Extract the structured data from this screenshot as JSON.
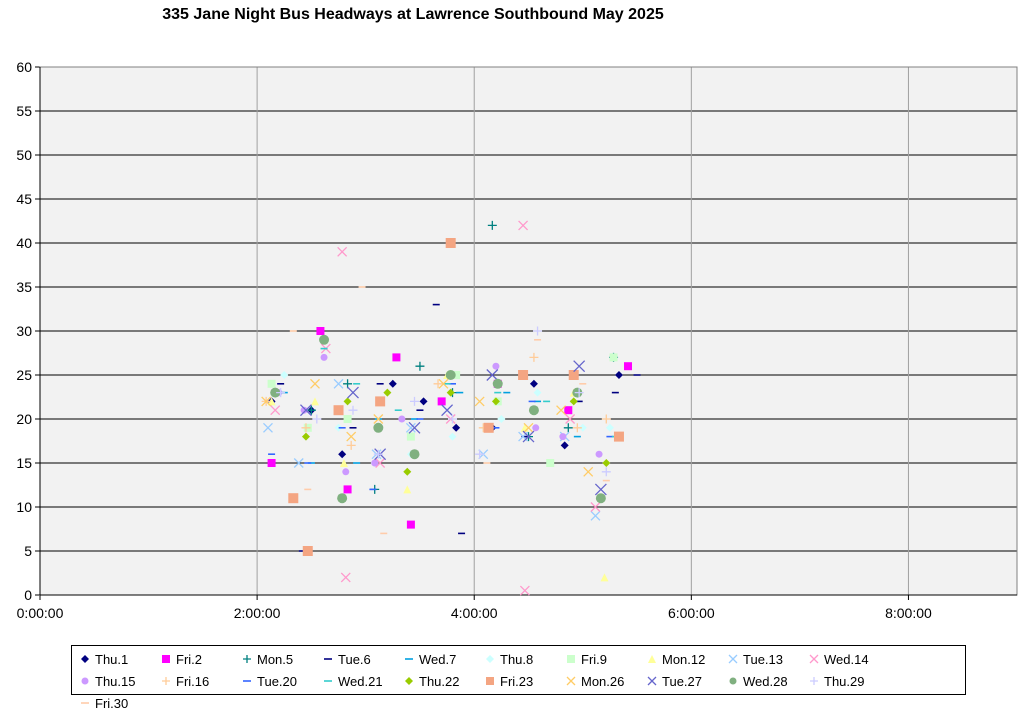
{
  "chart_data": {
    "type": "scatter",
    "title": "335 Jane Night Bus Headways at Lawrence Southbound May 2025",
    "xlim": [
      "0:00:00",
      "9:00:00"
    ],
    "ylim": [
      0,
      60
    ],
    "x_ticks": [
      "0:00:00",
      "2:00:00",
      "4:00:00",
      "6:00:00",
      "8:00:00"
    ],
    "y_ticks": [
      0,
      5,
      10,
      15,
      20,
      25,
      30,
      35,
      40,
      45,
      50,
      55,
      60
    ],
    "grid": true,
    "legend_position": "bottom",
    "series": [
      {
        "name": "Thu.1",
        "marker": "diamond",
        "color": "#000080",
        "points": [
          [
            "2:08",
            22
          ],
          [
            "2:30",
            21
          ],
          [
            "2:47",
            16
          ],
          [
            "3:15",
            24
          ],
          [
            "3:32",
            22
          ],
          [
            "3:50",
            19
          ],
          [
            "4:10",
            19
          ],
          [
            "4:33",
            24
          ],
          [
            "4:50",
            17
          ],
          [
            "5:20",
            25
          ]
        ]
      },
      {
        "name": "Fri.2",
        "marker": "square",
        "color": "#ff00ff",
        "points": [
          [
            "2:08",
            15
          ],
          [
            "2:35",
            30
          ],
          [
            "2:50",
            12
          ],
          [
            "3:17",
            27
          ],
          [
            "3:25",
            8
          ],
          [
            "3:42",
            22
          ],
          [
            "4:13",
            24
          ],
          [
            "4:52",
            21
          ],
          [
            "5:25",
            26
          ]
        ]
      },
      {
        "name": "Mon.5",
        "marker": "plus",
        "color": "#008080",
        "points": [
          [
            "2:30",
            21
          ],
          [
            "2:50",
            24
          ],
          [
            "3:05",
            12
          ],
          [
            "3:30",
            26
          ],
          [
            "3:48",
            23
          ],
          [
            "4:10",
            42
          ],
          [
            "4:30",
            18
          ],
          [
            "4:52",
            19
          ],
          [
            "5:17",
            27
          ]
        ]
      },
      {
        "name": "Tue.6",
        "marker": "dash",
        "color": "#000080",
        "points": [
          [
            "2:13",
            24
          ],
          [
            "2:25",
            5
          ],
          [
            "2:53",
            19
          ],
          [
            "3:08",
            24
          ],
          [
            "3:30",
            21
          ],
          [
            "3:39",
            33
          ],
          [
            "3:53",
            7
          ],
          [
            "4:13",
            24
          ],
          [
            "4:28",
            18
          ],
          [
            "4:58",
            22
          ],
          [
            "5:18",
            23
          ],
          [
            "5:30",
            25
          ]
        ]
      },
      {
        "name": "Wed.7",
        "marker": "dash",
        "color": "#00a0e0",
        "points": [
          [
            "2:15",
            23
          ],
          [
            "2:30",
            15
          ],
          [
            "2:55",
            15
          ],
          [
            "3:07",
            20
          ],
          [
            "3:27",
            20
          ],
          [
            "3:52",
            23
          ],
          [
            "4:18",
            23
          ],
          [
            "4:35",
            22
          ],
          [
            "4:57",
            18
          ]
        ]
      },
      {
        "name": "Thu.8",
        "marker": "diamond",
        "color": "#ccffff",
        "points": [
          [
            "2:15",
            25
          ],
          [
            "2:45",
            19
          ],
          [
            "3:05",
            15
          ],
          [
            "3:25",
            16
          ],
          [
            "3:48",
            18
          ],
          [
            "4:15",
            20
          ],
          [
            "4:35",
            23
          ],
          [
            "5:00",
            19
          ],
          [
            "5:15",
            19
          ]
        ]
      },
      {
        "name": "Fri.9",
        "marker": "square",
        "color": "#ccffcc",
        "points": [
          [
            "2:08",
            24
          ],
          [
            "2:28",
            19
          ],
          [
            "2:50",
            20
          ],
          [
            "3:25",
            18
          ],
          [
            "3:50",
            25
          ],
          [
            "4:13",
            22
          ],
          [
            "4:42",
            15
          ],
          [
            "5:17",
            27
          ]
        ]
      },
      {
        "name": "Mon.12",
        "marker": "triangle",
        "color": "#ffff99",
        "points": [
          [
            "2:08",
            22
          ],
          [
            "2:32",
            22
          ],
          [
            "2:48",
            15
          ],
          [
            "3:23",
            12
          ],
          [
            "3:45",
            25
          ],
          [
            "4:28",
            19
          ],
          [
            "4:55",
            23
          ],
          [
            "5:12",
            2
          ]
        ]
      },
      {
        "name": "Tue.13",
        "marker": "x",
        "color": "#99ccff",
        "points": [
          [
            "2:06",
            19
          ],
          [
            "2:23",
            15
          ],
          [
            "2:45",
            24
          ],
          [
            "3:06",
            16
          ],
          [
            "3:25",
            19
          ],
          [
            "3:45",
            21
          ],
          [
            "4:05",
            16
          ],
          [
            "4:27",
            18
          ],
          [
            "4:50",
            18
          ],
          [
            "5:07",
            9
          ]
        ]
      },
      {
        "name": "Wed.14",
        "marker": "x",
        "color": "#ff99cc",
        "points": [
          [
            "2:10",
            21
          ],
          [
            "2:38",
            28
          ],
          [
            "2:47",
            39
          ],
          [
            "2:49",
            2
          ],
          [
            "3:08",
            15
          ],
          [
            "3:47",
            20
          ],
          [
            "4:27",
            42
          ],
          [
            "4:28",
            0.5
          ],
          [
            "4:53",
            20
          ],
          [
            "5:07",
            10
          ]
        ]
      },
      {
        "name": "Thu.15",
        "marker": "circle",
        "color": "#cc99ff",
        "points": [
          [
            "2:12",
            23
          ],
          [
            "2:26",
            21
          ],
          [
            "2:37",
            27
          ],
          [
            "2:49",
            14
          ],
          [
            "3:05",
            15
          ],
          [
            "3:20",
            20
          ],
          [
            "4:12",
            26
          ],
          [
            "4:34",
            19
          ],
          [
            "4:49",
            18
          ],
          [
            "5:09",
            16
          ]
        ]
      },
      {
        "name": "Fri.16",
        "marker": "plus",
        "color": "#ffcc99",
        "points": [
          [
            "2:05",
            22
          ],
          [
            "2:27",
            19
          ],
          [
            "2:52",
            17
          ],
          [
            "3:40",
            24
          ],
          [
            "4:05",
            19
          ],
          [
            "4:33",
            27
          ],
          [
            "4:57",
            19
          ],
          [
            "5:13",
            20
          ]
        ]
      },
      {
        "name": "Tue.20",
        "marker": "dash",
        "color": "#3366ff",
        "points": [
          [
            "2:08",
            16
          ],
          [
            "2:28",
            15
          ],
          [
            "2:47",
            19
          ],
          [
            "3:04",
            12
          ],
          [
            "3:30",
            20
          ],
          [
            "3:48",
            24
          ],
          [
            "4:12",
            19
          ],
          [
            "4:32",
            22
          ],
          [
            "4:55",
            22
          ],
          [
            "5:15",
            18
          ]
        ]
      },
      {
        "name": "Wed.21",
        "marker": "dash",
        "color": "#33cccc",
        "points": [
          [
            "2:12",
            23
          ],
          [
            "2:37",
            28
          ],
          [
            "2:55",
            24
          ],
          [
            "3:18",
            21
          ],
          [
            "3:45",
            24
          ],
          [
            "4:13",
            23
          ],
          [
            "4:40",
            22
          ],
          [
            "5:18",
            18
          ]
        ]
      },
      {
        "name": "Thu.22",
        "marker": "diamond",
        "color": "#99cc00",
        "points": [
          [
            "2:10",
            23
          ],
          [
            "2:27",
            18
          ],
          [
            "2:50",
            22
          ],
          [
            "3:12",
            23
          ],
          [
            "3:23",
            14
          ],
          [
            "3:47",
            23
          ],
          [
            "4:12",
            22
          ],
          [
            "4:33",
            21
          ],
          [
            "4:55",
            22
          ],
          [
            "5:13",
            15
          ]
        ]
      },
      {
        "name": "Fri.23",
        "marker": "square",
        "color": "#f4a582",
        "points": [
          [
            "2:20",
            11
          ],
          [
            "2:28",
            5
          ],
          [
            "2:45",
            21
          ],
          [
            "3:08",
            22
          ],
          [
            "3:47",
            40
          ],
          [
            "4:08",
            19
          ],
          [
            "4:27",
            25
          ],
          [
            "4:55",
            25
          ],
          [
            "5:20",
            18
          ]
        ]
      },
      {
        "name": "Mon.26",
        "marker": "x",
        "color": "#ffcc66",
        "points": [
          [
            "2:05",
            22
          ],
          [
            "2:32",
            24
          ],
          [
            "2:52",
            18
          ],
          [
            "3:07",
            20
          ],
          [
            "3:43",
            24
          ],
          [
            "4:03",
            22
          ],
          [
            "4:30",
            19
          ],
          [
            "4:48",
            21
          ],
          [
            "5:03",
            14
          ]
        ]
      },
      {
        "name": "Tue.27",
        "marker": "x",
        "color": "#6666cc",
        "points": [
          [
            "2:27",
            21
          ],
          [
            "2:53",
            23
          ],
          [
            "3:08",
            16
          ],
          [
            "3:27",
            19
          ],
          [
            "3:45",
            21
          ],
          [
            "4:10",
            25
          ],
          [
            "4:30",
            18
          ],
          [
            "4:58",
            26
          ],
          [
            "5:10",
            12
          ]
        ]
      },
      {
        "name": "Wed.28",
        "marker": "circle",
        "color": "#80b080",
        "points": [
          [
            "2:10",
            23
          ],
          [
            "2:37",
            29
          ],
          [
            "2:47",
            11
          ],
          [
            "3:07",
            19
          ],
          [
            "3:27",
            16
          ],
          [
            "3:47",
            25
          ],
          [
            "4:13",
            24
          ],
          [
            "4:33",
            21
          ],
          [
            "4:57",
            23
          ],
          [
            "5:10",
            11
          ]
        ]
      },
      {
        "name": "Thu.29",
        "marker": "plus",
        "color": "#ccccff",
        "points": [
          [
            "2:13",
            23
          ],
          [
            "2:33",
            20
          ],
          [
            "2:53",
            21
          ],
          [
            "3:07",
            16
          ],
          [
            "3:27",
            22
          ],
          [
            "3:48",
            20
          ],
          [
            "4:03",
            16
          ],
          [
            "4:35",
            30
          ],
          [
            "4:58",
            23
          ],
          [
            "5:13",
            14
          ]
        ]
      },
      {
        "name": "Fri.30",
        "marker": "dash",
        "color": "#ffccaa",
        "points": [
          [
            "2:20",
            30
          ],
          [
            "2:28",
            12
          ],
          [
            "2:58",
            35
          ],
          [
            "3:10",
            7
          ],
          [
            "4:07",
            15
          ],
          [
            "4:35",
            29
          ],
          [
            "5:00",
            24
          ],
          [
            "5:13",
            13
          ]
        ]
      }
    ]
  }
}
